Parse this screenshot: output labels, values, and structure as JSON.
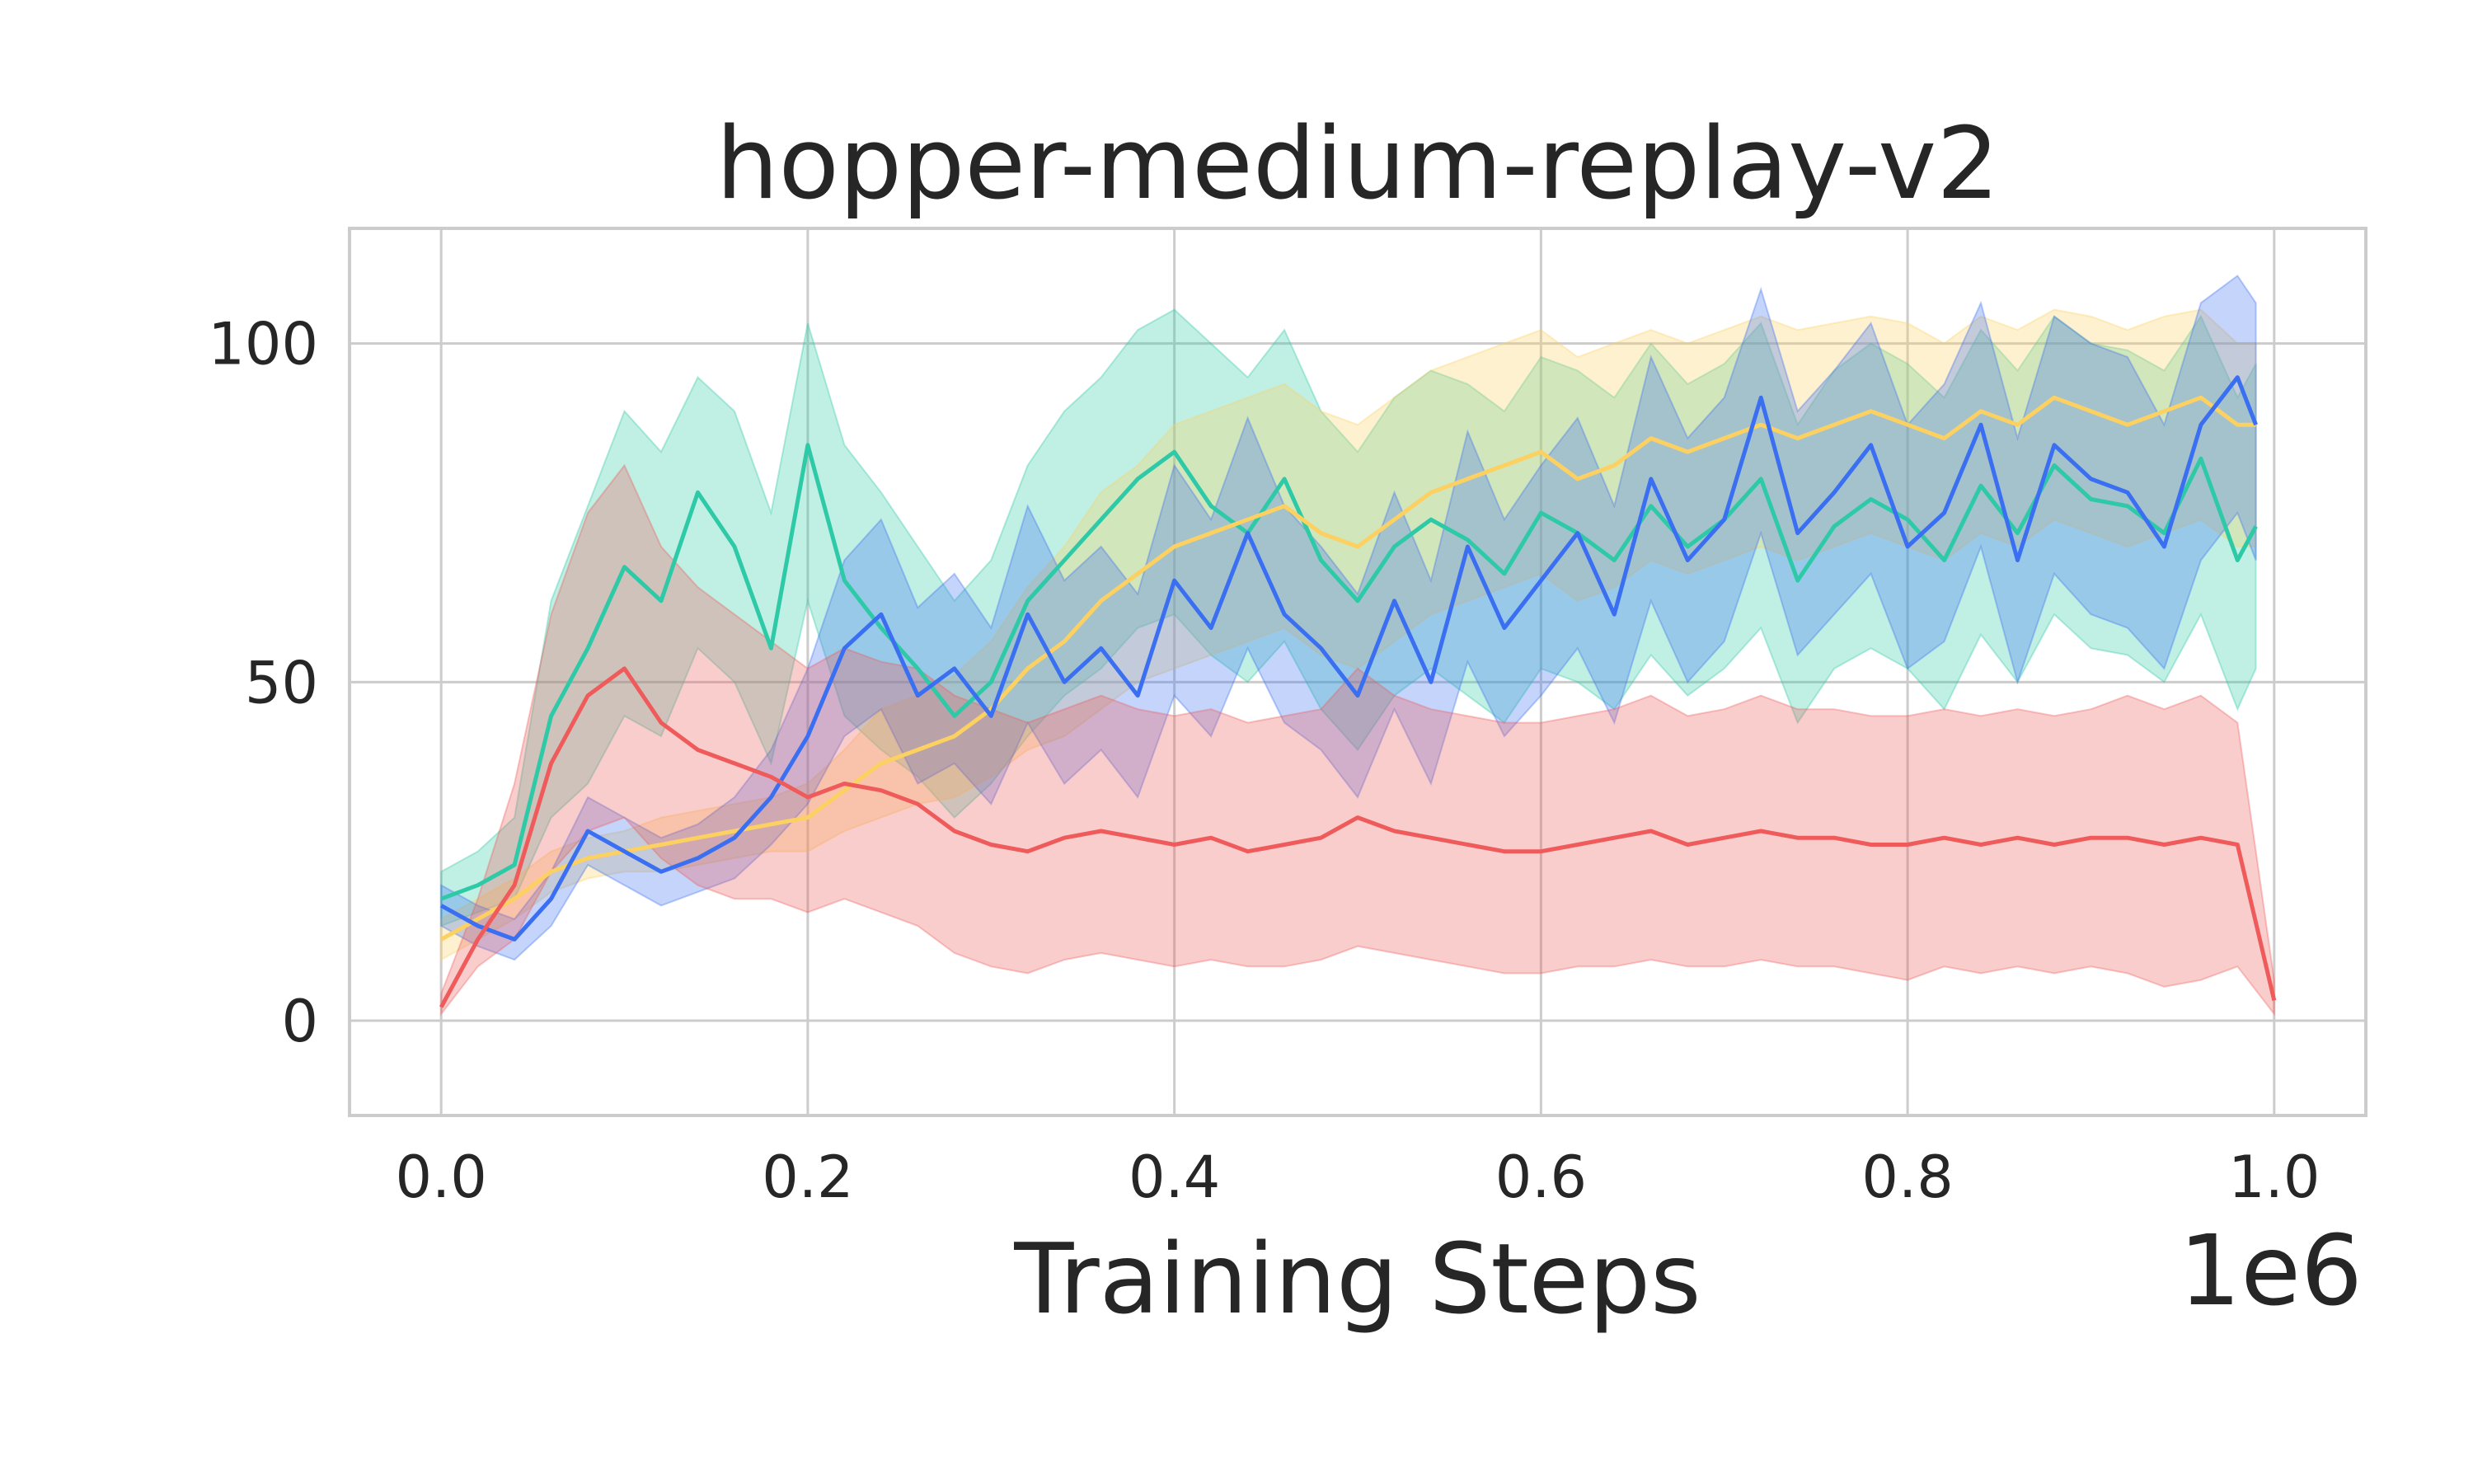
{
  "chart_data": {
    "type": "line",
    "title": "hopper-medium-replay-v2",
    "xlabel": "Training Steps",
    "ylabel": "",
    "x_offset_label": "1e6",
    "xlim": [
      -0.05,
      1.05
    ],
    "ylim": [
      -14,
      117
    ],
    "xticks": [
      0.0,
      0.2,
      0.4,
      0.6,
      0.8,
      1.0
    ],
    "xtick_labels": [
      "0.0",
      "0.2",
      "0.4",
      "0.6",
      "0.8",
      "1.0"
    ],
    "yticks": [
      0,
      50,
      100
    ],
    "ytick_labels": [
      "0",
      "50",
      "100"
    ],
    "grid": true,
    "legend": "none",
    "series": [
      {
        "color": "#2ec9a7",
        "x": [
          0.0,
          0.02,
          0.04,
          0.06,
          0.08,
          0.1,
          0.12,
          0.14,
          0.16,
          0.18,
          0.2,
          0.22,
          0.24,
          0.26,
          0.28,
          0.3,
          0.32,
          0.34,
          0.36,
          0.38,
          0.4,
          0.42,
          0.44,
          0.46,
          0.48,
          0.5,
          0.52,
          0.54,
          0.56,
          0.58,
          0.6,
          0.62,
          0.64,
          0.66,
          0.68,
          0.7,
          0.72,
          0.74,
          0.76,
          0.78,
          0.8,
          0.82,
          0.84,
          0.86,
          0.88,
          0.9,
          0.92,
          0.94,
          0.96,
          0.98,
          0.99
        ],
        "y": [
          18,
          20,
          23,
          45,
          55,
          67,
          62,
          78,
          70,
          55,
          85,
          65,
          58,
          52,
          45,
          50,
          62,
          68,
          74,
          80,
          84,
          76,
          72,
          80,
          68,
          62,
          70,
          74,
          71,
          66,
          75,
          72,
          68,
          76,
          70,
          74,
          80,
          65,
          73,
          77,
          74,
          68,
          79,
          72,
          82,
          77,
          76,
          72,
          83,
          68,
          73
        ],
        "lower": [
          14,
          16,
          18,
          30,
          35,
          45,
          42,
          55,
          50,
          38,
          62,
          45,
          40,
          36,
          30,
          35,
          42,
          48,
          52,
          58,
          60,
          54,
          50,
          56,
          46,
          40,
          48,
          52,
          48,
          44,
          52,
          50,
          46,
          54,
          48,
          52,
          58,
          44,
          52,
          55,
          52,
          46,
          57,
          50,
          60,
          55,
          54,
          50,
          60,
          46,
          52
        ],
        "upper": [
          22,
          25,
          30,
          62,
          76,
          90,
          84,
          95,
          90,
          75,
          103,
          85,
          78,
          70,
          62,
          68,
          82,
          90,
          95,
          102,
          105,
          100,
          95,
          102,
          90,
          84,
          92,
          96,
          94,
          90,
          98,
          96,
          92,
          100,
          94,
          97,
          103,
          88,
          96,
          100,
          97,
          92,
          102,
          96,
          104,
          100,
          99,
          96,
          104,
          92,
          97
        ]
      },
      {
        "color": "#fcd061",
        "x": [
          0.0,
          0.02,
          0.04,
          0.06,
          0.08,
          0.1,
          0.12,
          0.14,
          0.16,
          0.18,
          0.2,
          0.22,
          0.24,
          0.26,
          0.28,
          0.3,
          0.32,
          0.34,
          0.36,
          0.38,
          0.4,
          0.42,
          0.44,
          0.46,
          0.48,
          0.5,
          0.52,
          0.54,
          0.56,
          0.58,
          0.6,
          0.62,
          0.64,
          0.66,
          0.68,
          0.7,
          0.72,
          0.74,
          0.76,
          0.78,
          0.8,
          0.82,
          0.84,
          0.86,
          0.88,
          0.9,
          0.92,
          0.94,
          0.96,
          0.98,
          0.99
        ],
        "y": [
          12,
          15,
          18,
          22,
          24,
          25,
          26,
          27,
          28,
          29,
          30,
          34,
          38,
          40,
          42,
          46,
          52,
          56,
          62,
          66,
          70,
          72,
          74,
          76,
          72,
          70,
          74,
          78,
          80,
          82,
          84,
          80,
          82,
          86,
          84,
          86,
          88,
          86,
          88,
          90,
          88,
          86,
          90,
          88,
          92,
          90,
          88,
          90,
          92,
          88,
          88
        ],
        "lower": [
          9,
          12,
          15,
          19,
          21,
          22,
          22,
          23,
          24,
          25,
          25,
          28,
          30,
          32,
          33,
          36,
          40,
          42,
          46,
          50,
          52,
          54,
          56,
          58,
          54,
          52,
          56,
          60,
          62,
          64,
          66,
          62,
          64,
          68,
          66,
          68,
          70,
          68,
          70,
          72,
          70,
          68,
          72,
          70,
          74,
          72,
          70,
          72,
          74,
          70,
          70
        ],
        "upper": [
          15,
          18,
          21,
          25,
          27,
          28,
          30,
          31,
          32,
          33,
          35,
          40,
          46,
          48,
          51,
          56,
          64,
          70,
          78,
          82,
          88,
          90,
          92,
          94,
          90,
          88,
          92,
          96,
          98,
          100,
          102,
          98,
          100,
          102,
          100,
          102,
          104,
          102,
          103,
          104,
          103,
          100,
          104,
          102,
          105,
          104,
          102,
          104,
          105,
          100,
          100
        ]
      },
      {
        "color": "#3b6ff2",
        "x": [
          0.0,
          0.02,
          0.04,
          0.06,
          0.08,
          0.1,
          0.12,
          0.14,
          0.16,
          0.18,
          0.2,
          0.22,
          0.24,
          0.26,
          0.28,
          0.3,
          0.32,
          0.34,
          0.36,
          0.38,
          0.4,
          0.42,
          0.44,
          0.46,
          0.48,
          0.5,
          0.52,
          0.54,
          0.56,
          0.58,
          0.6,
          0.62,
          0.64,
          0.66,
          0.68,
          0.7,
          0.72,
          0.74,
          0.76,
          0.78,
          0.8,
          0.82,
          0.84,
          0.86,
          0.88,
          0.9,
          0.92,
          0.94,
          0.96,
          0.98,
          0.99
        ],
        "y": [
          17,
          14,
          12,
          18,
          28,
          25,
          22,
          24,
          27,
          33,
          42,
          55,
          60,
          48,
          52,
          45,
          60,
          50,
          55,
          48,
          65,
          58,
          72,
          60,
          55,
          48,
          62,
          50,
          70,
          58,
          65,
          72,
          60,
          80,
          68,
          74,
          92,
          72,
          78,
          85,
          70,
          75,
          88,
          68,
          85,
          80,
          78,
          70,
          88,
          95,
          88
        ],
        "lower": [
          14,
          11,
          9,
          14,
          23,
          20,
          17,
          19,
          21,
          26,
          32,
          42,
          46,
          35,
          38,
          32,
          44,
          35,
          40,
          33,
          48,
          42,
          55,
          44,
          40,
          33,
          46,
          35,
          53,
          42,
          48,
          55,
          44,
          62,
          50,
          56,
          72,
          54,
          60,
          66,
          52,
          56,
          70,
          50,
          66,
          60,
          58,
          52,
          68,
          75,
          68
        ],
        "upper": [
          20,
          17,
          15,
          22,
          33,
          30,
          27,
          29,
          33,
          40,
          52,
          68,
          74,
          61,
          66,
          58,
          76,
          65,
          70,
          63,
          82,
          74,
          89,
          76,
          70,
          63,
          78,
          65,
          87,
          74,
          82,
          89,
          76,
          98,
          86,
          92,
          108,
          90,
          96,
          103,
          88,
          94,
          106,
          86,
          104,
          100,
          98,
          88,
          106,
          110,
          106
        ]
      },
      {
        "color": "#ef5b5b",
        "x": [
          0.0,
          0.02,
          0.04,
          0.06,
          0.08,
          0.1,
          0.12,
          0.14,
          0.16,
          0.18,
          0.2,
          0.22,
          0.24,
          0.26,
          0.28,
          0.3,
          0.32,
          0.34,
          0.36,
          0.38,
          0.4,
          0.42,
          0.44,
          0.46,
          0.48,
          0.5,
          0.52,
          0.54,
          0.56,
          0.58,
          0.6,
          0.62,
          0.64,
          0.66,
          0.68,
          0.7,
          0.72,
          0.74,
          0.76,
          0.78,
          0.8,
          0.82,
          0.84,
          0.86,
          0.88,
          0.9,
          0.92,
          0.94,
          0.96,
          0.98,
          1.0
        ],
        "y": [
          2,
          12,
          20,
          38,
          48,
          52,
          44,
          40,
          38,
          36,
          33,
          35,
          34,
          32,
          28,
          26,
          25,
          27,
          28,
          27,
          26,
          27,
          25,
          26,
          27,
          30,
          28,
          27,
          26,
          25,
          25,
          26,
          27,
          28,
          26,
          27,
          28,
          27,
          27,
          26,
          26,
          27,
          26,
          27,
          26,
          27,
          27,
          26,
          27,
          26,
          3
        ],
        "lower": [
          1,
          8,
          12,
          22,
          28,
          30,
          24,
          20,
          18,
          18,
          16,
          18,
          16,
          14,
          10,
          8,
          7,
          9,
          10,
          9,
          8,
          9,
          8,
          8,
          9,
          11,
          10,
          9,
          8,
          7,
          7,
          8,
          8,
          9,
          8,
          8,
          9,
          8,
          8,
          7,
          6,
          8,
          7,
          8,
          7,
          8,
          7,
          5,
          6,
          8,
          1
        ],
        "upper": [
          4,
          18,
          35,
          60,
          75,
          82,
          70,
          64,
          60,
          56,
          52,
          55,
          53,
          52,
          48,
          46,
          44,
          46,
          48,
          46,
          45,
          46,
          44,
          45,
          46,
          52,
          48,
          46,
          45,
          44,
          44,
          45,
          46,
          48,
          45,
          46,
          48,
          46,
          46,
          45,
          45,
          46,
          45,
          46,
          45,
          46,
          48,
          46,
          48,
          44,
          6
        ]
      }
    ]
  }
}
